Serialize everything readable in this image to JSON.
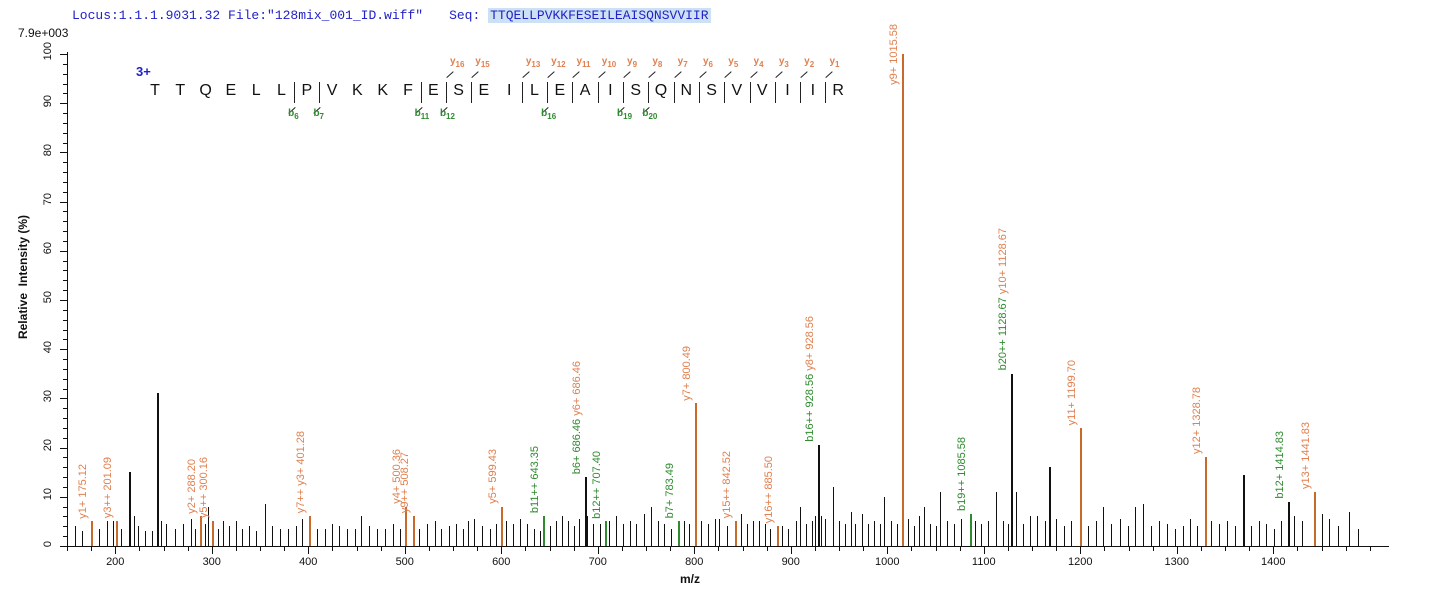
{
  "header": {
    "locus_text": "Locus:1.1.1.9031.32 File:\"128mix_001_ID.wiff\"",
    "seq_label": "Seq:",
    "sequence": "TTQELLPVKKFESEILEAISQNSVVIIR",
    "max_intensity": "7.9e+003",
    "charge_state": "3+"
  },
  "sequence_panel": {
    "residues": [
      "T",
      "T",
      "Q",
      "E",
      "L",
      "L",
      "P",
      "V",
      "K",
      "K",
      "F",
      "E",
      "S",
      "E",
      "I",
      "L",
      "E",
      "A",
      "I",
      "S",
      "Q",
      "N",
      "S",
      "V",
      "V",
      "I",
      "I",
      "R"
    ],
    "markers": [
      {
        "pos": 6,
        "b": "6"
      },
      {
        "pos": 7,
        "b": "7"
      },
      {
        "pos": 11,
        "b": "11"
      },
      {
        "pos": 12,
        "b": "12",
        "y": "16"
      },
      {
        "pos": 13,
        "y": "15"
      },
      {
        "pos": 15,
        "y": "13"
      },
      {
        "pos": 16,
        "b": "16",
        "y": "12"
      },
      {
        "pos": 17,
        "y": "11"
      },
      {
        "pos": 18,
        "y": "10"
      },
      {
        "pos": 19,
        "b": "19",
        "y": "9"
      },
      {
        "pos": 20,
        "b": "20",
        "y": "8"
      },
      {
        "pos": 21,
        "y": "7"
      },
      {
        "pos": 22,
        "y": "6"
      },
      {
        "pos": 23,
        "y": "5"
      },
      {
        "pos": 24,
        "y": "4"
      },
      {
        "pos": 25,
        "y": "3"
      },
      {
        "pos": 26,
        "y": "2"
      },
      {
        "pos": 27,
        "y": "1"
      }
    ]
  },
  "chart_data": {
    "type": "bar",
    "subtype": "mass-spectrum-stick-plot",
    "title": "",
    "xlabel": "m/z",
    "ylabel": "Relative  Intensity (%)",
    "x_range": [
      150,
      1520
    ],
    "y_range": [
      0,
      100
    ],
    "x_major_ticks": [
      200,
      300,
      400,
      500,
      600,
      700,
      800,
      900,
      1000,
      1100,
      1200,
      1300,
      1400
    ],
    "x_minor_tick_step": 25,
    "y_major_ticks": [
      0,
      10,
      20,
      30,
      40,
      50,
      60,
      70,
      80,
      90,
      100
    ],
    "y_minor_tick_step": 2,
    "grid": false,
    "legend": "none",
    "colors": {
      "y_ion_label": "#e08050",
      "y_ion_peak": "#c96a2a",
      "b_ion_label": "#2e8b2e",
      "b_ion_peak": "#2e8b2e",
      "unlabeled_peak": "#111111",
      "header_blue": "#2121c8",
      "seq_highlight": "#cde1f4"
    },
    "annotated_peaks": [
      {
        "mz": 175.12,
        "intensity": 5,
        "peak_color": "y",
        "labels": [
          {
            "text": "y1+ 175.12",
            "color": "y"
          }
        ]
      },
      {
        "mz": 201.09,
        "intensity": 5,
        "peak_color": "y",
        "labels": [
          {
            "text": "y3++ 201.09",
            "color": "y"
          }
        ]
      },
      {
        "mz": 288.2,
        "intensity": 6,
        "peak_color": "y",
        "labels": [
          {
            "text": "y2+ 288.20",
            "color": "y"
          }
        ]
      },
      {
        "mz": 300.16,
        "intensity": 5,
        "peak_color": "y",
        "labels": [
          {
            "text": "y5++ 300.16",
            "color": "y"
          }
        ]
      },
      {
        "mz": 401.28,
        "intensity": 6,
        "peak_color": "y",
        "labels": [
          {
            "text": "y7++ y3+ 401.28",
            "color": "y"
          }
        ]
      },
      {
        "mz": 500.36,
        "intensity": 8,
        "peak_color": "y",
        "labels": [
          {
            "text": "y4+ 500.36",
            "color": "y"
          }
        ]
      },
      {
        "mz": 508.27,
        "intensity": 6,
        "peak_color": "y",
        "labels": [
          {
            "text": "y9++ 508.27",
            "color": "y"
          }
        ]
      },
      {
        "mz": 599.43,
        "intensity": 8,
        "peak_color": "y",
        "labels": [
          {
            "text": "y5+ 599.43",
            "color": "y"
          }
        ]
      },
      {
        "mz": 643.35,
        "intensity": 6,
        "peak_color": "b",
        "labels": [
          {
            "text": "b11++ 643.35",
            "color": "b"
          }
        ]
      },
      {
        "mz": 686.46,
        "intensity": 14,
        "peak_color": "black",
        "labels": [
          {
            "text": "b6+ 686.46",
            "color": "b"
          },
          {
            "text": " y6+ 686.46",
            "color": "y"
          }
        ]
      },
      {
        "mz": 707.4,
        "intensity": 5,
        "peak_color": "b",
        "labels": [
          {
            "text": "b12++ 707.40",
            "color": "b"
          }
        ]
      },
      {
        "mz": 783.49,
        "intensity": 5,
        "peak_color": "b",
        "labels": [
          {
            "text": "b7+ 783.49",
            "color": "b"
          }
        ]
      },
      {
        "mz": 800.49,
        "intensity": 29,
        "peak_color": "y",
        "labels": [
          {
            "text": "y7+ 800.49",
            "color": "y"
          }
        ]
      },
      {
        "mz": 842.52,
        "intensity": 5,
        "peak_color": "y",
        "labels": [
          {
            "text": "y15++ 842.52",
            "color": "y"
          }
        ]
      },
      {
        "mz": 885.5,
        "intensity": 4,
        "peak_color": "y",
        "labels": [
          {
            "text": "y16++ 885.50",
            "color": "y"
          }
        ]
      },
      {
        "mz": 928.56,
        "intensity": 20.5,
        "peak_color": "black",
        "labels": [
          {
            "text": "b16++ 928.56",
            "color": "b"
          },
          {
            "text": " y8+ 928.56",
            "color": "y"
          }
        ]
      },
      {
        "mz": 1015.58,
        "intensity": 100,
        "peak_color": "y",
        "labels": [
          {
            "text": "y9+ 1015.58",
            "color": "y"
          }
        ]
      },
      {
        "mz": 1085.58,
        "intensity": 6.5,
        "peak_color": "b",
        "labels": [
          {
            "text": "b19++ 1085.58",
            "color": "b"
          }
        ]
      },
      {
        "mz": 1128.67,
        "intensity": 35,
        "peak_color": "black",
        "labels": [
          {
            "text": "b20++ 1128.67",
            "color": "b"
          },
          {
            "text": " y10+ 1128.67",
            "color": "y"
          }
        ]
      },
      {
        "mz": 1199.7,
        "intensity": 24,
        "peak_color": "y",
        "labels": [
          {
            "text": "y11+ 1199.70",
            "color": "y"
          }
        ]
      },
      {
        "mz": 1328.78,
        "intensity": 18,
        "peak_color": "y",
        "labels": [
          {
            "text": "y12+ 1328.78",
            "color": "y"
          }
        ]
      },
      {
        "mz": 1414.83,
        "intensity": 9,
        "peak_color": "black",
        "labels": [
          {
            "text": "b12+ 1414.83",
            "color": "b"
          }
        ]
      },
      {
        "mz": 1441.83,
        "intensity": 11,
        "peak_color": "y",
        "labels": [
          {
            "text": "y13+ 1441.83",
            "color": "y"
          }
        ]
      }
    ],
    "unlabeled_peaks": [
      [
        158,
        4
      ],
      [
        166,
        3
      ],
      [
        183,
        3.5
      ],
      [
        191,
        5
      ],
      [
        198,
        5
      ],
      [
        206,
        3.5
      ],
      [
        214.5,
        15
      ],
      [
        219,
        6
      ],
      [
        224,
        4
      ],
      [
        231,
        3
      ],
      [
        238,
        3
      ],
      [
        243.5,
        31
      ],
      [
        247.5,
        5
      ],
      [
        253,
        4.5
      ],
      [
        262,
        3.5
      ],
      [
        270,
        4.5
      ],
      [
        278,
        5.5
      ],
      [
        283,
        3.5
      ],
      [
        293,
        4.5
      ],
      [
        296,
        8
      ],
      [
        306,
        3.5
      ],
      [
        312,
        5
      ],
      [
        318,
        4
      ],
      [
        325,
        5
      ],
      [
        331,
        3.5
      ],
      [
        339,
        4
      ],
      [
        346,
        3
      ],
      [
        355,
        8.5
      ],
      [
        362,
        4
      ],
      [
        371,
        3.5
      ],
      [
        379,
        3.5
      ],
      [
        387,
        4
      ],
      [
        394,
        5.5
      ],
      [
        409,
        3.5
      ],
      [
        417,
        3.5
      ],
      [
        425,
        4.5
      ],
      [
        432,
        4
      ],
      [
        440,
        3.5
      ],
      [
        448,
        3.5
      ],
      [
        455,
        6
      ],
      [
        463,
        4
      ],
      [
        471,
        3.5
      ],
      [
        480,
        3.5
      ],
      [
        488,
        4.5
      ],
      [
        495,
        3.5
      ],
      [
        515,
        3.5
      ],
      [
        523,
        4.5
      ],
      [
        531,
        5
      ],
      [
        538,
        3.5
      ],
      [
        546,
        4
      ],
      [
        553,
        4.5
      ],
      [
        560,
        3.5
      ],
      [
        566,
        5
      ],
      [
        572,
        5.5
      ],
      [
        580,
        4
      ],
      [
        588,
        3.5
      ],
      [
        595,
        4.5
      ],
      [
        605,
        5
      ],
      [
        612,
        4.5
      ],
      [
        619,
        5.5
      ],
      [
        627,
        4.5
      ],
      [
        634,
        3.5
      ],
      [
        640,
        3
      ],
      [
        650,
        4
      ],
      [
        657,
        5
      ],
      [
        663,
        6
      ],
      [
        669,
        5
      ],
      [
        675,
        4
      ],
      [
        681,
        5.5
      ],
      [
        689,
        6
      ],
      [
        695,
        4.5
      ],
      [
        702,
        4.5
      ],
      [
        712,
        5
      ],
      [
        719,
        6
      ],
      [
        726,
        4.5
      ],
      [
        733,
        5
      ],
      [
        740,
        4.5
      ],
      [
        748,
        6.5
      ],
      [
        755,
        8
      ],
      [
        762,
        5
      ],
      [
        769,
        4.5
      ],
      [
        776,
        3.5
      ],
      [
        789,
        5
      ],
      [
        795,
        4.5
      ],
      [
        807,
        5
      ],
      [
        814,
        4.5
      ],
      [
        821,
        5.5
      ],
      [
        826,
        5.5
      ],
      [
        834,
        4
      ],
      [
        848,
        6.5
      ],
      [
        855,
        4.5
      ],
      [
        861,
        5
      ],
      [
        867,
        5
      ],
      [
        873,
        4.5
      ],
      [
        879,
        3.5
      ],
      [
        891,
        4
      ],
      [
        897,
        3.5
      ],
      [
        905,
        5
      ],
      [
        910,
        8
      ],
      [
        916,
        4.5
      ],
      [
        922,
        5
      ],
      [
        925,
        6
      ],
      [
        931,
        6
      ],
      [
        936,
        5.5
      ],
      [
        944,
        12
      ],
      [
        950,
        5
      ],
      [
        956,
        4.5
      ],
      [
        962,
        7
      ],
      [
        967,
        4.5
      ],
      [
        974,
        6.5
      ],
      [
        980,
        4.5
      ],
      [
        986,
        5
      ],
      [
        992,
        4.5
      ],
      [
        997,
        10
      ],
      [
        1004,
        5
      ],
      [
        1010,
        4.5
      ],
      [
        1022,
        5.5
      ],
      [
        1028,
        4
      ],
      [
        1033,
        6
      ],
      [
        1038,
        8
      ],
      [
        1044,
        4.5
      ],
      [
        1050,
        4
      ],
      [
        1055,
        11
      ],
      [
        1062,
        5
      ],
      [
        1069,
        4.5
      ],
      [
        1076,
        5.5
      ],
      [
        1091,
        5
      ],
      [
        1097,
        4.5
      ],
      [
        1104,
        5
      ],
      [
        1113,
        11
      ],
      [
        1120,
        5
      ],
      [
        1125,
        4.5
      ],
      [
        1133,
        11
      ],
      [
        1141,
        4.5
      ],
      [
        1148,
        6
      ],
      [
        1155,
        6
      ],
      [
        1163,
        5
      ],
      [
        1168,
        16
      ],
      [
        1175,
        5.5
      ],
      [
        1183,
        4
      ],
      [
        1190,
        5
      ],
      [
        1208,
        4
      ],
      [
        1216,
        5
      ],
      [
        1224,
        8
      ],
      [
        1232,
        4.5
      ],
      [
        1241,
        5.5
      ],
      [
        1249,
        4
      ],
      [
        1257,
        8
      ],
      [
        1265,
        8.5
      ],
      [
        1273,
        4
      ],
      [
        1282,
        5
      ],
      [
        1290,
        4.5
      ],
      [
        1298,
        3.5
      ],
      [
        1306,
        4
      ],
      [
        1314,
        5.5
      ],
      [
        1321,
        4
      ],
      [
        1336,
        5
      ],
      [
        1344,
        4.5
      ],
      [
        1352,
        5
      ],
      [
        1360,
        4
      ],
      [
        1369,
        14.5
      ],
      [
        1377,
        4
      ],
      [
        1385,
        5
      ],
      [
        1393,
        4.5
      ],
      [
        1401,
        3.5
      ],
      [
        1408,
        5
      ],
      [
        1422,
        6
      ],
      [
        1430,
        5
      ],
      [
        1450,
        6.5
      ],
      [
        1458,
        5.5
      ],
      [
        1467,
        4
      ],
      [
        1478,
        7
      ],
      [
        1488,
        3.5
      ]
    ]
  }
}
